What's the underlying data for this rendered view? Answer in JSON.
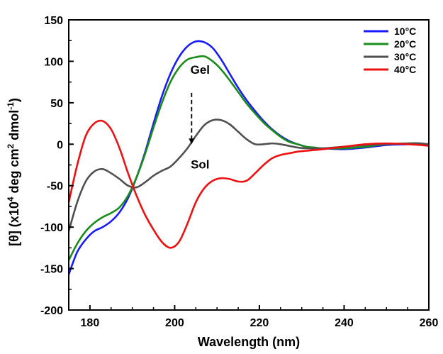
{
  "chart_data": {
    "type": "line",
    "title": "",
    "xlabel": "Wavelength (nm)",
    "ylabel": {
      "prefix": "[θ] (x10",
      "exp1": "4",
      "mid": " deg cm",
      "exp2": "2",
      "mid2": " dmol",
      "exp3": "-1",
      "suffix": ")"
    },
    "xlim": [
      175,
      260
    ],
    "ylim": [
      -200,
      150
    ],
    "xticks": [
      180,
      200,
      220,
      240,
      260
    ],
    "yticks": [
      -200,
      -150,
      -100,
      -50,
      0,
      50,
      100,
      150
    ],
    "grid": false,
    "legend_position": "top-right",
    "annotations": [
      {
        "text": "Gel",
        "x": 204,
        "y": 90
      },
      {
        "text": "Sol",
        "x": 204,
        "y": -24
      }
    ],
    "arrow": {
      "from": [
        204,
        62
      ],
      "to": [
        204,
        0
      ]
    },
    "series": [
      {
        "name": "10°C",
        "color": "#1a1aff",
        "x": [
          175,
          177,
          179,
          181,
          183,
          185,
          187,
          189,
          191,
          193,
          195,
          197,
          199,
          201,
          203,
          205,
          207,
          209,
          211,
          213,
          215,
          217,
          219,
          221,
          223,
          225,
          227,
          229,
          231,
          233,
          235,
          240,
          245,
          250,
          255,
          258,
          260
        ],
        "y": [
          -157,
          -130,
          -115,
          -105,
          -100,
          -93,
          -82,
          -65,
          -40,
          -10,
          25,
          58,
          85,
          105,
          118,
          124,
          123,
          116,
          102,
          85,
          68,
          53,
          40,
          28,
          18,
          10,
          4,
          0,
          -3,
          -5,
          -5,
          -6,
          -4,
          -1,
          0,
          1,
          -1
        ]
      },
      {
        "name": "20°C",
        "color": "#1a8c1a",
        "x": [
          175,
          177,
          179,
          181,
          183,
          185,
          187,
          189,
          191,
          193,
          195,
          197,
          199,
          201,
          203,
          205,
          207,
          209,
          211,
          213,
          215,
          217,
          219,
          221,
          223,
          225,
          227,
          229,
          231,
          233,
          235,
          240,
          245,
          250,
          255,
          258,
          260
        ],
        "y": [
          -140,
          -120,
          -105,
          -95,
          -88,
          -83,
          -76,
          -62,
          -40,
          -12,
          20,
          50,
          75,
          92,
          102,
          105,
          106,
          100,
          90,
          77,
          63,
          49,
          37,
          26,
          17,
          9,
          3,
          0,
          -3,
          -4,
          -5,
          -5,
          -3,
          0,
          1,
          1,
          -1
        ]
      },
      {
        "name": "30°C",
        "color": "#505050",
        "x": [
          175,
          177,
          179,
          181,
          183,
          185,
          187,
          189,
          191,
          193,
          195,
          197,
          199,
          201,
          203,
          205,
          207,
          209,
          211,
          213,
          215,
          217,
          219,
          221,
          223,
          225,
          227,
          229,
          231,
          233,
          235,
          240,
          245,
          250,
          255,
          258,
          260
        ],
        "y": [
          -105,
          -70,
          -45,
          -33,
          -30,
          -35,
          -42,
          -50,
          -52,
          -46,
          -38,
          -32,
          -27,
          -17,
          -5,
          10,
          23,
          29,
          29,
          24,
          15,
          6,
          0,
          0,
          1,
          0,
          -2,
          -4,
          -5,
          -5,
          -5,
          -3,
          -1,
          0,
          1,
          1,
          0
        ]
      },
      {
        "name": "40°C",
        "color": "#ee1111",
        "x": [
          175,
          177,
          179,
          181,
          183,
          185,
          187,
          189,
          191,
          193,
          195,
          197,
          199,
          201,
          203,
          205,
          207,
          209,
          211,
          213,
          215,
          217,
          219,
          221,
          223,
          225,
          227,
          229,
          231,
          233,
          235,
          240,
          245,
          250,
          255,
          258,
          260
        ],
        "y": [
          -70,
          -25,
          10,
          25,
          28,
          18,
          -5,
          -35,
          -62,
          -85,
          -103,
          -118,
          -125,
          -118,
          -96,
          -70,
          -53,
          -44,
          -41,
          -42,
          -45,
          -44,
          -35,
          -25,
          -17,
          -13,
          -11,
          -9,
          -8,
          -7,
          -6,
          -3,
          0,
          1,
          0,
          -1,
          -2
        ]
      }
    ]
  }
}
